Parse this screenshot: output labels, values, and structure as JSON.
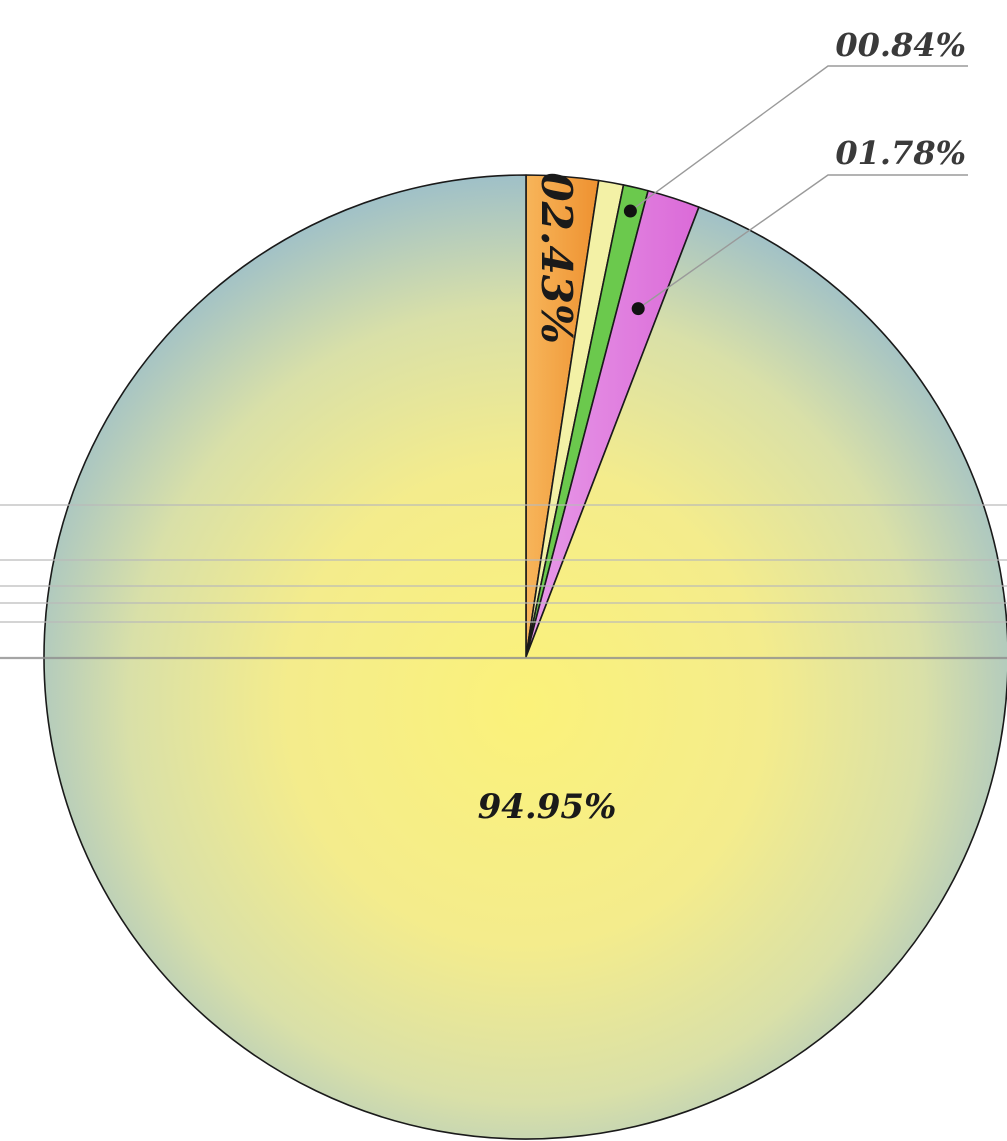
{
  "chart_data": {
    "type": "pie",
    "start": "top",
    "direction": "clockwise",
    "labels_format": "percent",
    "slices": [
      {
        "value": 2.43,
        "label": "02.43%",
        "color": "#f2a13c"
      },
      {
        "value": 0.84,
        "label": "00.84%",
        "color": "#f3f1a6"
      },
      {
        "value": 0.84,
        "label": "",
        "color": "#6bc94d"
      },
      {
        "value": 1.78,
        "label": "01.78%",
        "color": "#e27ee0"
      },
      {
        "value": 94.95,
        "label": "94.95%",
        "color": "#f6ee7e"
      }
    ]
  }
}
